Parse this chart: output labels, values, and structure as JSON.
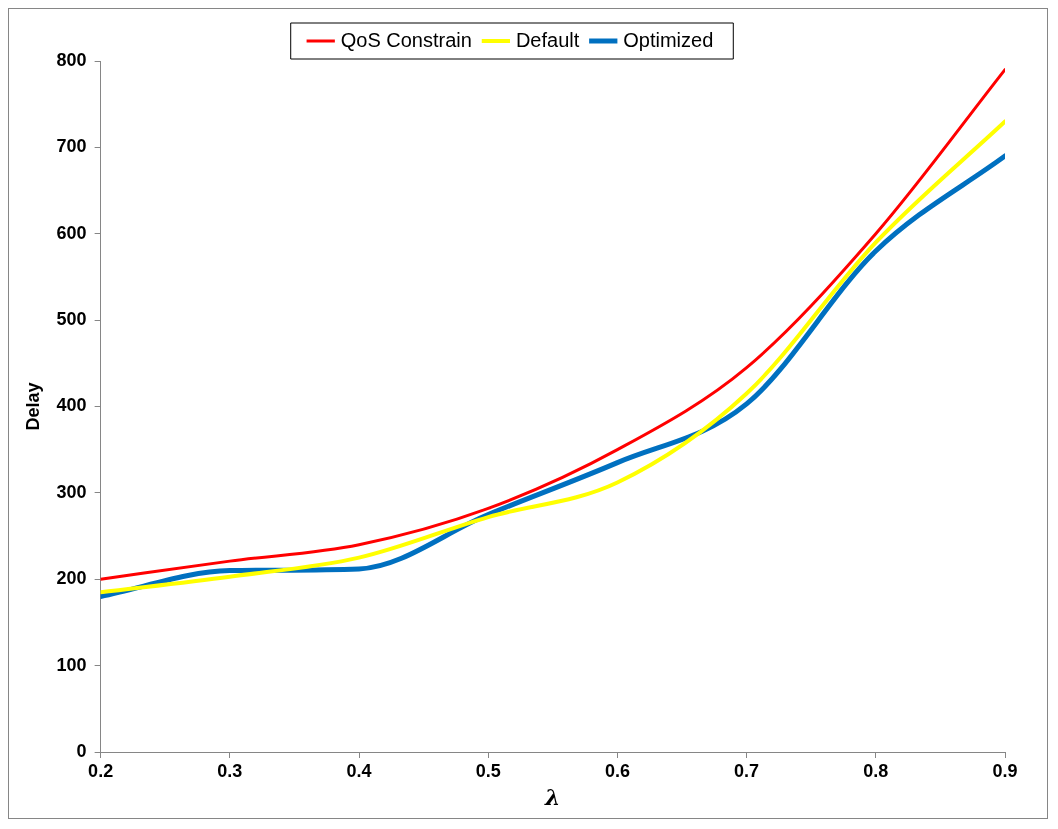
{
  "chart_data": {
    "type": "line",
    "xlabel": "λ",
    "ylabel": "Delay",
    "x": [
      0.2,
      0.3,
      0.4,
      0.5,
      0.6,
      0.7,
      0.8,
      0.9
    ],
    "series": [
      {
        "name": "QoS Constrain",
        "color": "#ff0000",
        "values": [
          200,
          221,
          240,
          282,
          350,
          445,
          600,
          790
        ]
      },
      {
        "name": "Default",
        "color": "#ffff00",
        "values": [
          185,
          203,
          225,
          272,
          312,
          415,
          590,
          730
        ]
      },
      {
        "name": "Optimized",
        "color": "#0070c0",
        "values": [
          180,
          210,
          212,
          275,
          335,
          403,
          580,
          690
        ]
      }
    ],
    "xlim": [
      0.2,
      0.9
    ],
    "xticks": [
      0.2,
      0.3,
      0.4,
      0.5,
      0.6,
      0.7,
      0.8,
      0.9
    ],
    "ylim": [
      0,
      800
    ],
    "yticks": [
      0,
      100,
      200,
      300,
      400,
      500,
      600,
      700,
      800
    ],
    "grid": false,
    "legend": "top",
    "marker": "none",
    "line_style": "solid"
  }
}
